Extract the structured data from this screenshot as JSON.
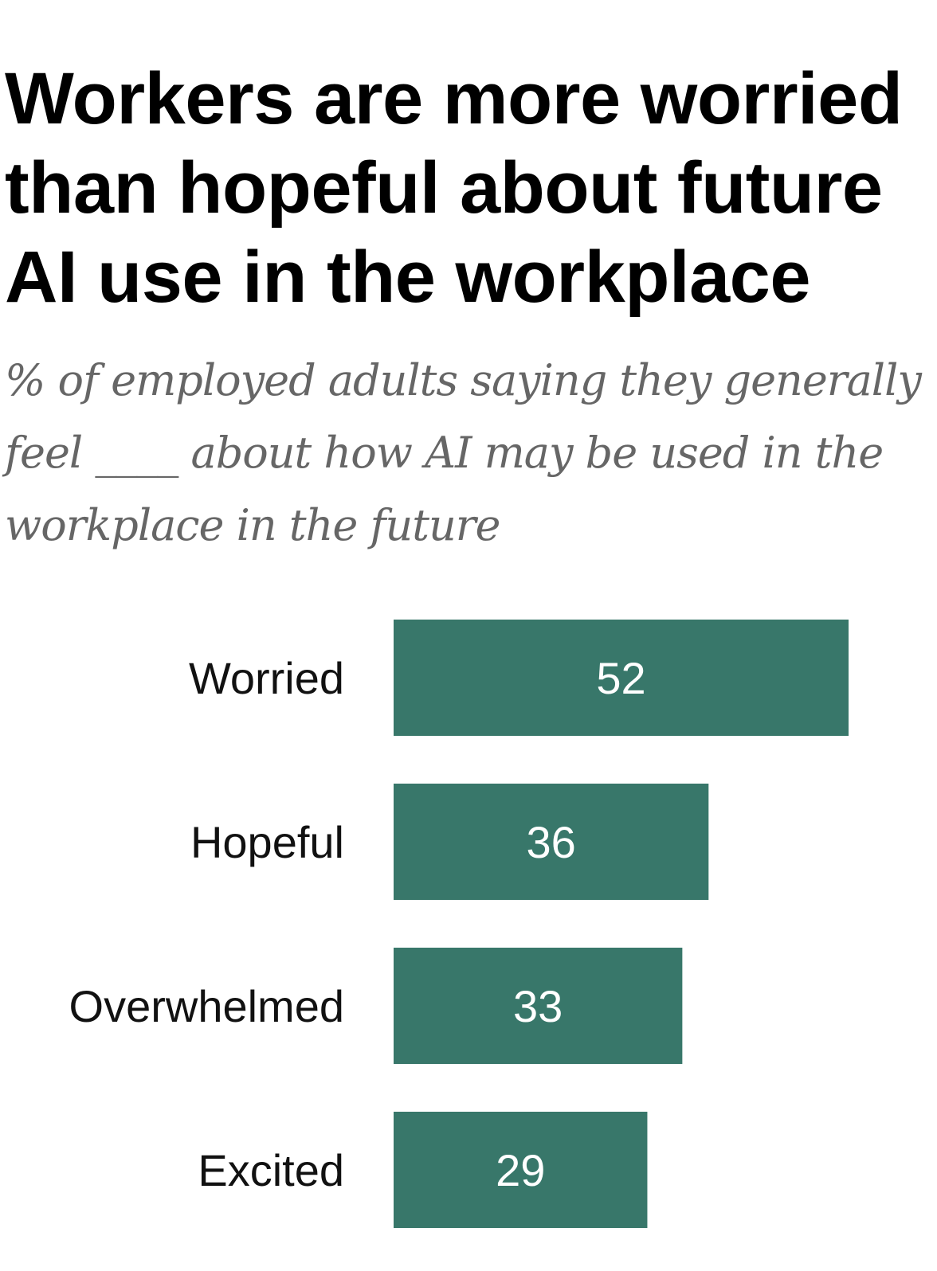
{
  "chart_data": {
    "type": "bar",
    "orientation": "horizontal",
    "title": "Workers are more worried than hopeful about future AI use in the workplace",
    "subtitle": "% of employed adults saying they generally feel ____ about how AI may be used in the workplace in the future",
    "categories": [
      "Worried",
      "Hopeful",
      "Overwhelmed",
      "Excited"
    ],
    "values": [
      52,
      36,
      33,
      29
    ],
    "data_labels": [
      "52",
      "36",
      "33",
      "29"
    ],
    "xlim": [
      0,
      52
    ],
    "grid": false,
    "bar_color": "#38776a"
  }
}
